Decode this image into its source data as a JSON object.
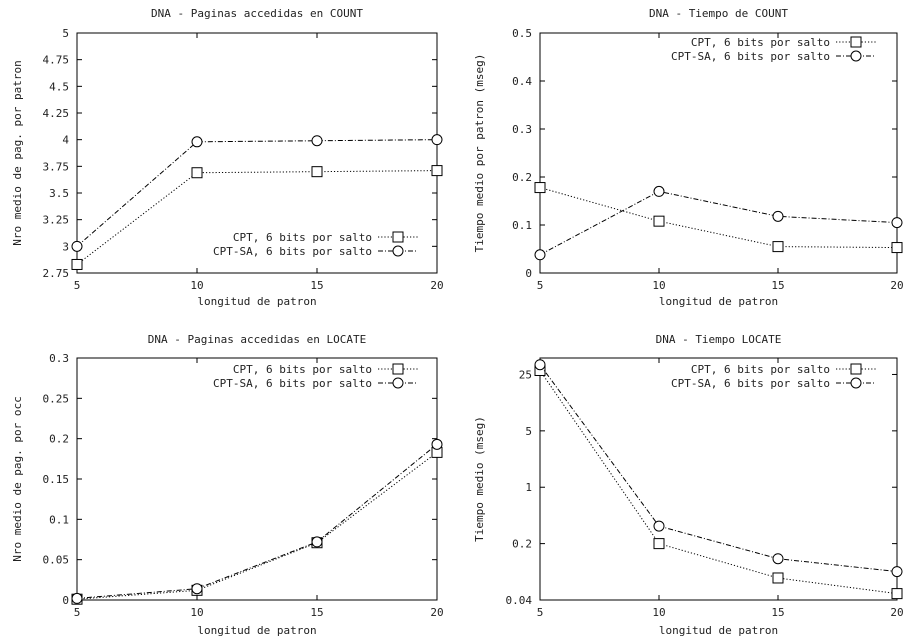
{
  "chart_data": [
    {
      "type": "line",
      "title": "DNA  - Paginas accedidas en COUNT",
      "xlabel": "longitud de patron",
      "ylabel": "Nro medio de pag. por patron",
      "x": [
        5,
        10,
        15,
        20
      ],
      "xlim": [
        5,
        20
      ],
      "ylim": [
        2.75,
        5
      ],
      "yscale": "linear",
      "xticks": [
        "5",
        "10",
        "15",
        "20"
      ],
      "yticks": [
        2.75,
        3,
        3.25,
        3.5,
        3.75,
        4,
        4.25,
        4.5,
        4.75,
        5
      ],
      "ytick_labels": [
        "2.75",
        "3",
        "3.25",
        "3.5",
        "3.75",
        "4",
        "4.25",
        "4.5",
        "4.75",
        "5"
      ],
      "legend_position": "bottom-right",
      "grid": false,
      "series": [
        {
          "name": "CPT, 6 bits por salto",
          "marker": "square",
          "dash": "dotted",
          "values": [
            2.83,
            3.69,
            3.7,
            3.71
          ]
        },
        {
          "name": "CPT-SA, 6 bits por salto",
          "marker": "circle",
          "dash": "dash-dot",
          "values": [
            3.0,
            3.98,
            3.99,
            4.0
          ]
        }
      ]
    },
    {
      "type": "line",
      "title": "DNA  - Tiempo de COUNT",
      "xlabel": "longitud de patron",
      "ylabel": "Tiempo medio por patron (mseg)",
      "x": [
        5,
        10,
        15,
        20
      ],
      "xlim": [
        5,
        20
      ],
      "ylim": [
        0,
        0.5
      ],
      "yscale": "linear",
      "xticks": [
        "5",
        "10",
        "15",
        "20"
      ],
      "yticks": [
        0,
        0.1,
        0.2,
        0.3,
        0.4,
        0.5
      ],
      "ytick_labels": [
        "0",
        "0.1",
        "0.2",
        "0.3",
        "0.4",
        "0.5"
      ],
      "legend_position": "top-right",
      "grid": false,
      "series": [
        {
          "name": "CPT, 6 bits por salto",
          "marker": "square",
          "dash": "dotted",
          "values": [
            0.178,
            0.108,
            0.055,
            0.053
          ]
        },
        {
          "name": "CPT-SA, 6 bits por salto",
          "marker": "circle",
          "dash": "dash-dot",
          "values": [
            0.038,
            0.17,
            0.118,
            0.105
          ]
        }
      ]
    },
    {
      "type": "line",
      "title": "DNA - Paginas accedidas en LOCATE",
      "xlabel": "longitud de patron",
      "ylabel": "Nro medio de pag. por occ",
      "x": [
        5,
        10,
        15,
        20
      ],
      "xlim": [
        5,
        20
      ],
      "ylim": [
        0,
        0.3
      ],
      "yscale": "linear",
      "xticks": [
        "5",
        "10",
        "15",
        "20"
      ],
      "yticks": [
        0,
        0.05,
        0.1,
        0.15,
        0.2,
        0.25,
        0.3
      ],
      "ytick_labels": [
        "0",
        "0.05",
        "0.1",
        "0.15",
        "0.2",
        "0.25",
        "0.3"
      ],
      "legend_position": "top-right",
      "grid": false,
      "series": [
        {
          "name": "CPT, 6 bits por salto",
          "marker": "square",
          "dash": "dotted",
          "values": [
            0.001,
            0.012,
            0.071,
            0.183
          ]
        },
        {
          "name": "CPT-SA, 6 bits por salto",
          "marker": "circle",
          "dash": "dash-dot",
          "values": [
            0.002,
            0.014,
            0.072,
            0.193
          ]
        }
      ]
    },
    {
      "type": "line",
      "title": "DNA  - Tiempo LOCATE",
      "xlabel": "longitud de patron",
      "ylabel": "Tiempo medio (mseg)",
      "x": [
        5,
        10,
        15,
        20
      ],
      "xlim": [
        5,
        20
      ],
      "ylim": [
        0.04,
        40
      ],
      "yscale": "log",
      "xticks": [
        "5",
        "10",
        "15",
        "20"
      ],
      "yticks": [
        0.04,
        0.2,
        1,
        5,
        25
      ],
      "ytick_labels": [
        "0.04",
        "0.2",
        "1",
        "5",
        "25"
      ],
      "legend_position": "top-right",
      "grid": false,
      "series": [
        {
          "name": "CPT, 6 bits por salto",
          "marker": "square",
          "dash": "dotted",
          "values": [
            28,
            0.2,
            0.075,
            0.048
          ]
        },
        {
          "name": "CPT-SA, 6 bits por salto",
          "marker": "circle",
          "dash": "dash-dot",
          "values": [
            33,
            0.33,
            0.13,
            0.09
          ]
        }
      ]
    }
  ]
}
